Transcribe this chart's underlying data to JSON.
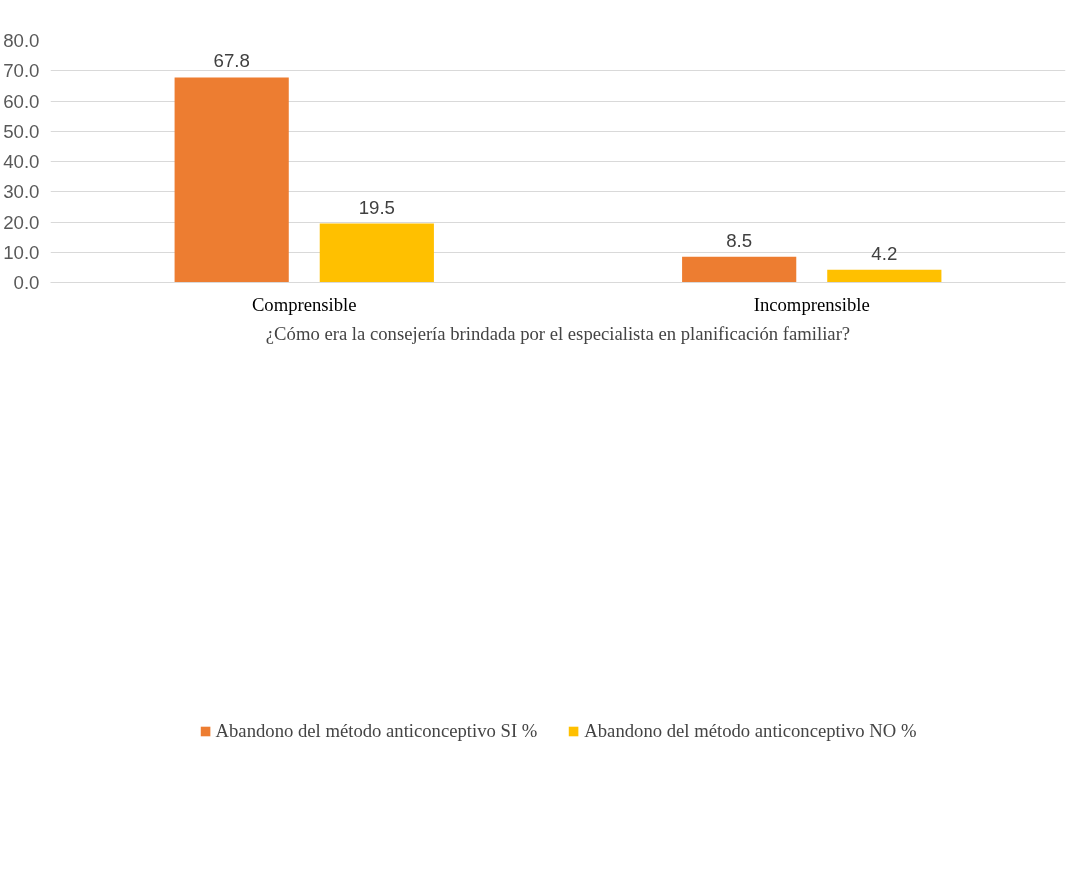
{
  "chart_data": {
    "type": "bar",
    "xlabel": "¿Cómo era la consejería brindada por el especialista en planificación familiar?",
    "categories": [
      "Comprensible",
      "Incomprensible"
    ],
    "series": [
      {
        "name": "Abandono del método anticonceptivo SI %",
        "color": "#ed7d31",
        "values": [
          67.8,
          8.5
        ]
      },
      {
        "name": "Abandono del método anticonceptivo NO %",
        "color": "#ffc000",
        "values": [
          19.5,
          4.2
        ]
      }
    ],
    "ylim": [
      0,
      80
    ],
    "yticks": [
      {
        "value": 0,
        "label": "0.0"
      },
      {
        "value": 10,
        "label": "10.0"
      },
      {
        "value": 20,
        "label": "20.0"
      },
      {
        "value": 30,
        "label": "30.0"
      },
      {
        "value": 40,
        "label": "40.0"
      },
      {
        "value": 50,
        "label": "50.0"
      },
      {
        "value": 60,
        "label": "60.0"
      },
      {
        "value": 70,
        "label": "70.0"
      },
      {
        "value": 80,
        "label": "80.0"
      }
    ],
    "grid": "y",
    "legend": "bottom",
    "data_labels": true
  }
}
